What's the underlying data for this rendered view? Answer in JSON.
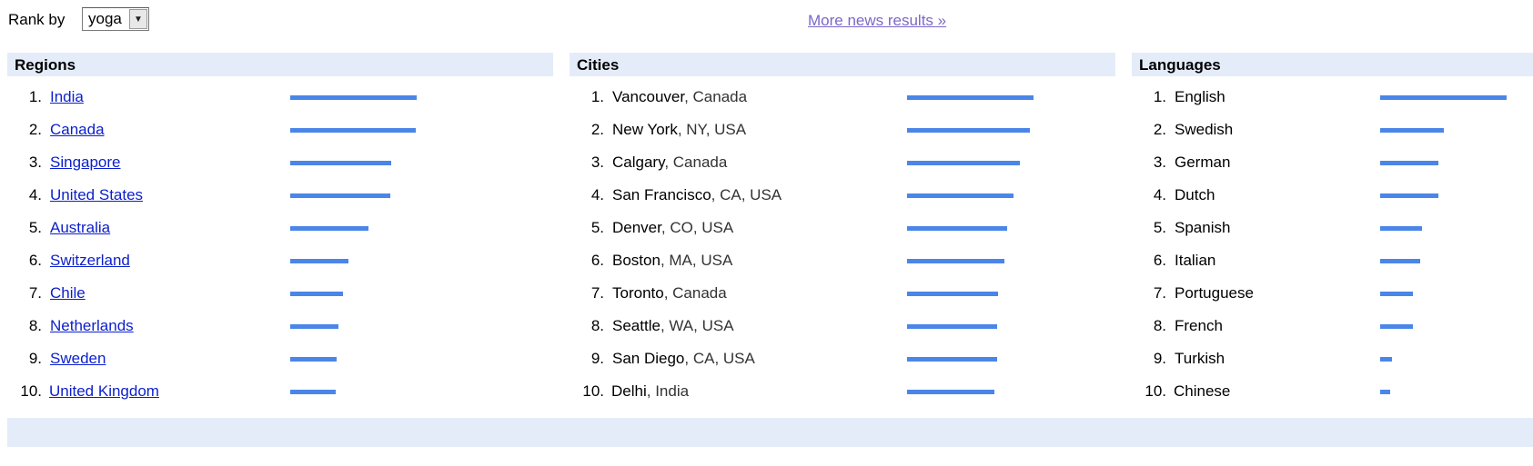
{
  "toolbar": {
    "rank_label": "Rank by",
    "rank_value": "yoga",
    "more_link": "More news results »"
  },
  "regions": {
    "title": "Regions",
    "items": [
      {
        "rank": "1.",
        "name": "India",
        "value": 100
      },
      {
        "rank": "2.",
        "name": "Canada",
        "value": 99
      },
      {
        "rank": "3.",
        "name": "Singapore",
        "value": 80
      },
      {
        "rank": "4.",
        "name": "United States",
        "value": 79
      },
      {
        "rank": "5.",
        "name": "Australia",
        "value": 62
      },
      {
        "rank": "6.",
        "name": "Switzerland",
        "value": 46
      },
      {
        "rank": "7.",
        "name": "Chile",
        "value": 42
      },
      {
        "rank": "8.",
        "name": "Netherlands",
        "value": 38
      },
      {
        "rank": "9.",
        "name": "Sweden",
        "value": 37
      },
      {
        "rank": "10.",
        "name": "United Kingdom",
        "value": 36
      }
    ]
  },
  "cities": {
    "title": "Cities",
    "items": [
      {
        "rank": "1.",
        "name": "Vancouver",
        "loc": ", Canada",
        "value": 100
      },
      {
        "rank": "2.",
        "name": "New York",
        "loc": ", NY, USA",
        "value": 97
      },
      {
        "rank": "3.",
        "name": "Calgary",
        "loc": ", Canada",
        "value": 89
      },
      {
        "rank": "4.",
        "name": "San Francisco",
        "loc": ", CA, USA",
        "value": 84
      },
      {
        "rank": "5.",
        "name": "Denver",
        "loc": ", CO, USA",
        "value": 79
      },
      {
        "rank": "6.",
        "name": "Boston",
        "loc": ", MA, USA",
        "value": 77
      },
      {
        "rank": "7.",
        "name": "Toronto",
        "loc": ", Canada",
        "value": 72
      },
      {
        "rank": "8.",
        "name": "Seattle",
        "loc": ", WA, USA",
        "value": 71
      },
      {
        "rank": "9.",
        "name": "San Diego",
        "loc": ", CA, USA",
        "value": 71
      },
      {
        "rank": "10.",
        "name": "Delhi",
        "loc": ", India",
        "value": 69
      }
    ]
  },
  "languages": {
    "title": "Languages",
    "items": [
      {
        "rank": "1.",
        "name": "English",
        "value": 100
      },
      {
        "rank": "2.",
        "name": "Swedish",
        "value": 50
      },
      {
        "rank": "3.",
        "name": "German",
        "value": 46
      },
      {
        "rank": "4.",
        "name": "Dutch",
        "value": 46
      },
      {
        "rank": "5.",
        "name": "Spanish",
        "value": 33
      },
      {
        "rank": "6.",
        "name": "Italian",
        "value": 32
      },
      {
        "rank": "7.",
        "name": "Portuguese",
        "value": 26
      },
      {
        "rank": "8.",
        "name": "French",
        "value": 26
      },
      {
        "rank": "9.",
        "name": "Turkish",
        "value": 9
      },
      {
        "rank": "10.",
        "name": "Chinese",
        "value": 8
      }
    ]
  },
  "colors": {
    "bar": "#4a86e8",
    "header_bg": "#e5ecf9",
    "link": "#0b1fcc"
  }
}
